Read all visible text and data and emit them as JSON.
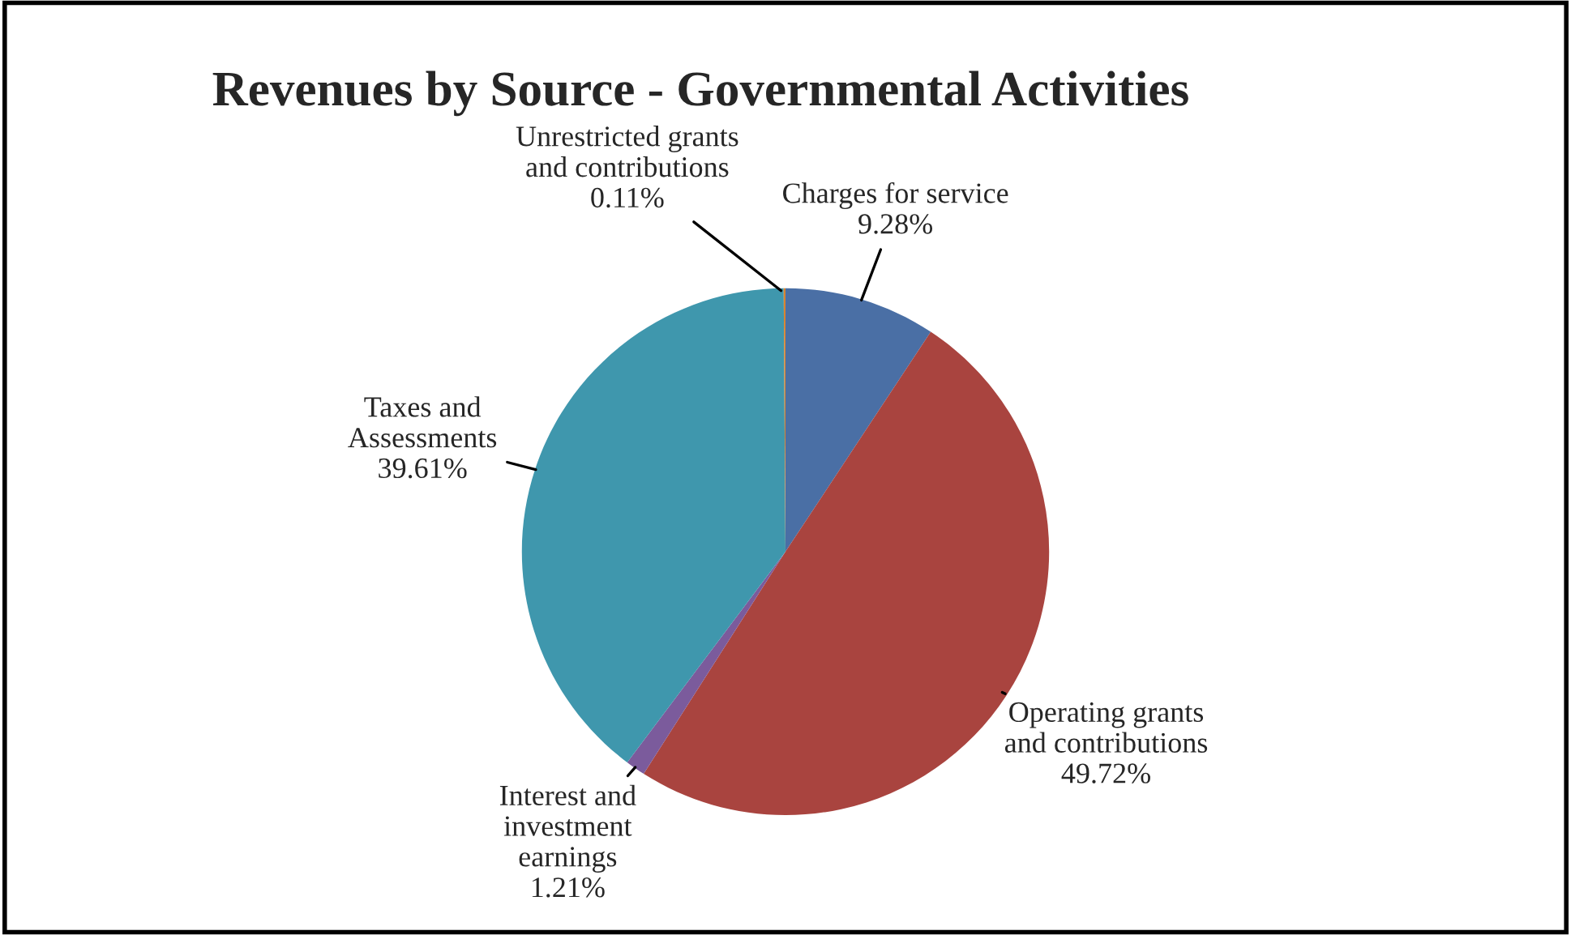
{
  "chart_data": {
    "type": "pie",
    "title": "Revenues by Source - Governmental Activities",
    "categories": [
      "Charges for service",
      "Operating grants\nand contributions",
      "Interest and\ninvestment\nearnings",
      "Taxes and\nAssessments",
      "Unrestricted grants\nand contributions"
    ],
    "values": [
      9.28,
      49.72,
      1.21,
      39.61,
      0.11
    ],
    "value_labels": [
      "9.28%",
      "49.72%",
      "1.21%",
      "39.61%",
      "0.11%"
    ],
    "colors": [
      "#4a6fa5",
      "#a9443f",
      "#7b5b9c",
      "#3f97ad",
      "#d9842f"
    ]
  }
}
